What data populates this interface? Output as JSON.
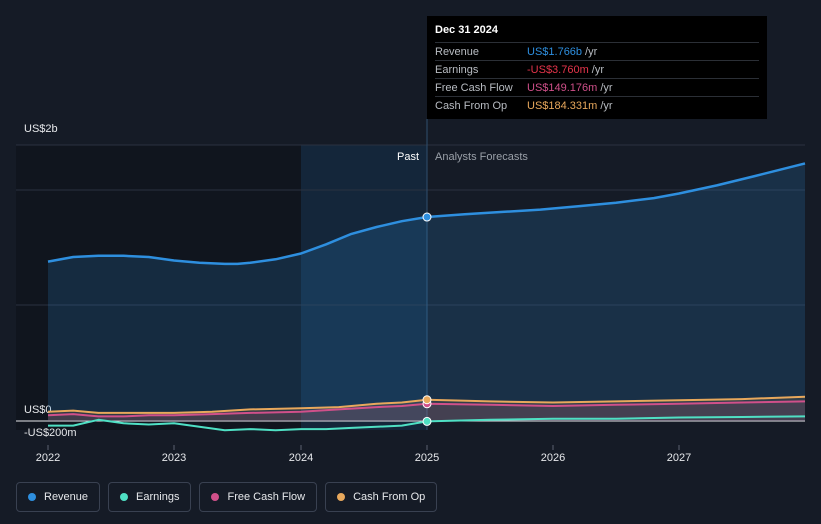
{
  "chart_data": {
    "type": "line",
    "x_ticks": [
      "2022",
      "2023",
      "2024",
      "2025",
      "2026",
      "2027"
    ],
    "y_ticks": [
      "US$2b",
      "US$0",
      "-US$200m"
    ],
    "regions": {
      "past": "Past",
      "forecast": "Analysts Forecasts"
    },
    "series": [
      {
        "name": "Revenue",
        "color": "#2e8fdf",
        "x": [
          2022.0,
          2022.2,
          2022.4,
          2022.6,
          2022.8,
          2023.0,
          2023.2,
          2023.4,
          2023.5,
          2023.6,
          2023.8,
          2024.0,
          2024.2,
          2024.4,
          2024.6,
          2024.8,
          2025.0,
          2025.3,
          2025.6,
          2025.9,
          2026.2,
          2026.5,
          2026.8,
          2027.0,
          2027.3,
          2027.6,
          2028.0
        ],
        "values": [
          1.38,
          1.42,
          1.43,
          1.43,
          1.42,
          1.39,
          1.37,
          1.36,
          1.36,
          1.37,
          1.4,
          1.45,
          1.53,
          1.62,
          1.68,
          1.73,
          1.766,
          1.79,
          1.81,
          1.83,
          1.86,
          1.89,
          1.93,
          1.97,
          2.04,
          2.12,
          2.23
        ]
      },
      {
        "name": "Earnings",
        "color": "#4fe0c4",
        "x": [
          2022.0,
          2022.2,
          2022.4,
          2022.6,
          2022.8,
          2023.0,
          2023.2,
          2023.4,
          2023.6,
          2023.8,
          2024.0,
          2024.2,
          2024.4,
          2024.6,
          2024.8,
          2025.0,
          2025.5,
          2026.0,
          2026.5,
          2027.0,
          2027.5,
          2028.0
        ],
        "values": [
          -0.04,
          -0.04,
          0.01,
          -0.02,
          -0.03,
          -0.02,
          -0.05,
          -0.08,
          -0.07,
          -0.08,
          -0.07,
          -0.07,
          -0.06,
          -0.05,
          -0.04,
          -0.00376,
          0.01,
          0.02,
          0.02,
          0.03,
          0.035,
          0.04
        ]
      },
      {
        "name": "Free Cash Flow",
        "color": "#d0508a",
        "x": [
          2022.0,
          2022.2,
          2022.4,
          2022.6,
          2022.8,
          2023.0,
          2023.3,
          2023.6,
          2024.0,
          2024.3,
          2024.6,
          2024.8,
          2025.0,
          2025.5,
          2026.0,
          2026.5,
          2027.0,
          2027.5,
          2028.0
        ],
        "values": [
          0.05,
          0.06,
          0.04,
          0.04,
          0.05,
          0.05,
          0.06,
          0.07,
          0.08,
          0.1,
          0.12,
          0.13,
          0.149,
          0.14,
          0.13,
          0.14,
          0.15,
          0.16,
          0.17
        ]
      },
      {
        "name": "Cash From Op",
        "color": "#e8a85c",
        "x": [
          2022.0,
          2022.2,
          2022.4,
          2022.6,
          2022.8,
          2023.0,
          2023.3,
          2023.6,
          2024.0,
          2024.3,
          2024.6,
          2024.8,
          2025.0,
          2025.5,
          2026.0,
          2026.5,
          2027.0,
          2027.5,
          2028.0
        ],
        "values": [
          0.08,
          0.09,
          0.07,
          0.07,
          0.07,
          0.07,
          0.08,
          0.1,
          0.11,
          0.12,
          0.15,
          0.16,
          0.184,
          0.17,
          0.16,
          0.17,
          0.18,
          0.19,
          0.21
        ]
      }
    ],
    "highlight_x": 2025.0,
    "ylim": [
      -0.2,
      2.4
    ],
    "xlim": [
      2022.0,
      2028.0
    ],
    "grid": true,
    "legend_position": "bottom-left"
  },
  "tooltip": {
    "title": "Dec 31 2024",
    "rows": [
      {
        "label": "Revenue",
        "value": "US$1.766b",
        "unit": "/yr",
        "color": "#2e8fdf"
      },
      {
        "label": "Earnings",
        "value": "-US$3.760m",
        "unit": "/yr",
        "color": "#e5344b"
      },
      {
        "label": "Free Cash Flow",
        "value": "US$149.176m",
        "unit": "/yr",
        "color": "#d0508a"
      },
      {
        "label": "Cash From Op",
        "value": "US$184.331m",
        "unit": "/yr",
        "color": "#e8a85c"
      }
    ]
  },
  "legend": [
    {
      "label": "Revenue",
      "color": "#2e8fdf"
    },
    {
      "label": "Earnings",
      "color": "#4fe0c4"
    },
    {
      "label": "Free Cash Flow",
      "color": "#d0508a"
    },
    {
      "label": "Cash From Op",
      "color": "#e8a85c"
    }
  ]
}
